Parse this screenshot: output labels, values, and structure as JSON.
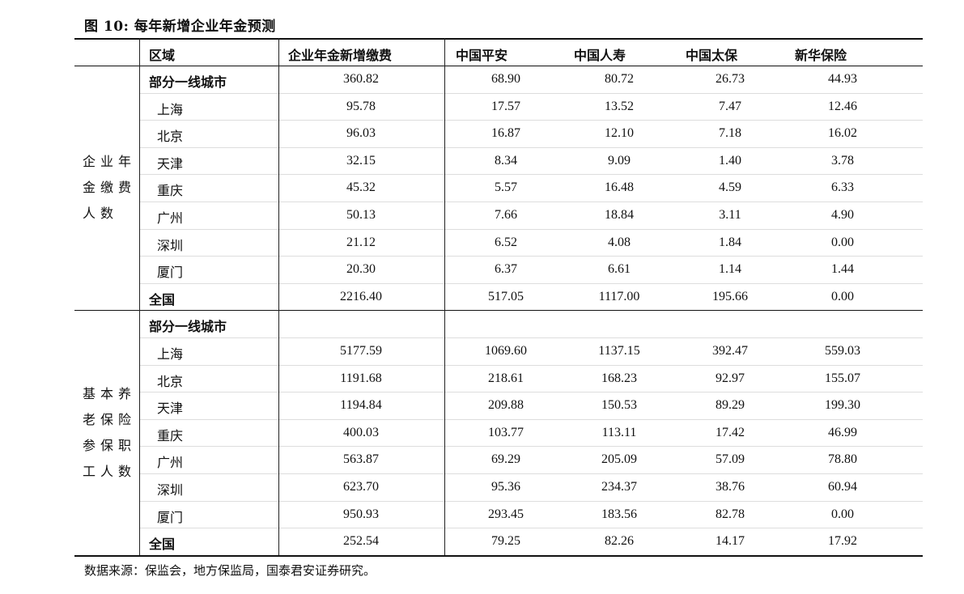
{
  "title": "图 10:  每年新增企业年金预测",
  "headers": [
    "区域",
    "企业年金新增缴费",
    "中国平安",
    "中国人寿",
    "中国太保",
    "新华保险"
  ],
  "sections": [
    {
      "group_label": [
        "企业年",
        "金缴费",
        "人数"
      ],
      "rows": [
        {
          "region": "部分一线城市",
          "bold": true,
          "values": [
            "360.82",
            "68.90",
            "80.72",
            "26.73",
            "44.93"
          ]
        },
        {
          "region": "上海",
          "values": [
            "95.78",
            "17.57",
            "13.52",
            "7.47",
            "12.46"
          ]
        },
        {
          "region": "北京",
          "values": [
            "96.03",
            "16.87",
            "12.10",
            "7.18",
            "16.02"
          ]
        },
        {
          "region": "天津",
          "values": [
            "32.15",
            "8.34",
            "9.09",
            "1.40",
            "3.78"
          ]
        },
        {
          "region": "重庆",
          "values": [
            "45.32",
            "5.57",
            "16.48",
            "4.59",
            "6.33"
          ]
        },
        {
          "region": "广州",
          "values": [
            "50.13",
            "7.66",
            "18.84",
            "3.11",
            "4.90"
          ]
        },
        {
          "region": "深圳",
          "values": [
            "21.12",
            "6.52",
            "4.08",
            "1.84",
            "0.00"
          ]
        },
        {
          "region": "厦门",
          "values": [
            "20.30",
            "6.37",
            "6.61",
            "1.14",
            "1.44"
          ]
        },
        {
          "region": "全国",
          "bold": true,
          "values": [
            "2216.40",
            "517.05",
            "1117.00",
            "195.66",
            "0.00"
          ]
        }
      ]
    },
    {
      "group_label": [
        "基本养",
        "老保险",
        "参保职",
        "工人数"
      ],
      "rows": [
        {
          "region": "部分一线城市",
          "bold": true,
          "values": [
            "",
            "",
            "",
            "",
            ""
          ]
        },
        {
          "region": "上海",
          "values": [
            "5177.59",
            "1069.60",
            "1137.15",
            "392.47",
            "559.03"
          ]
        },
        {
          "region": "北京",
          "values": [
            "1191.68",
            "218.61",
            "168.23",
            "92.97",
            "155.07"
          ]
        },
        {
          "region": "天津",
          "values": [
            "1194.84",
            "209.88",
            "150.53",
            "89.29",
            "199.30"
          ]
        },
        {
          "region": "重庆",
          "values": [
            "400.03",
            "103.77",
            "113.11",
            "17.42",
            "46.99"
          ]
        },
        {
          "region": "广州",
          "values": [
            "563.87",
            "69.29",
            "205.09",
            "57.09",
            "78.80"
          ]
        },
        {
          "region": "深圳",
          "values": [
            "623.70",
            "95.36",
            "234.37",
            "38.76",
            "60.94"
          ]
        },
        {
          "region": "厦门",
          "values": [
            "950.93",
            "293.45",
            "183.56",
            "82.78",
            "0.00"
          ]
        },
        {
          "region": "全国",
          "bold": true,
          "values": [
            "252.54",
            "79.25",
            "82.26",
            "14.17",
            "17.92"
          ]
        }
      ]
    }
  ],
  "source": "数据来源：保监会，地方保监局，国泰君安证券研究。"
}
